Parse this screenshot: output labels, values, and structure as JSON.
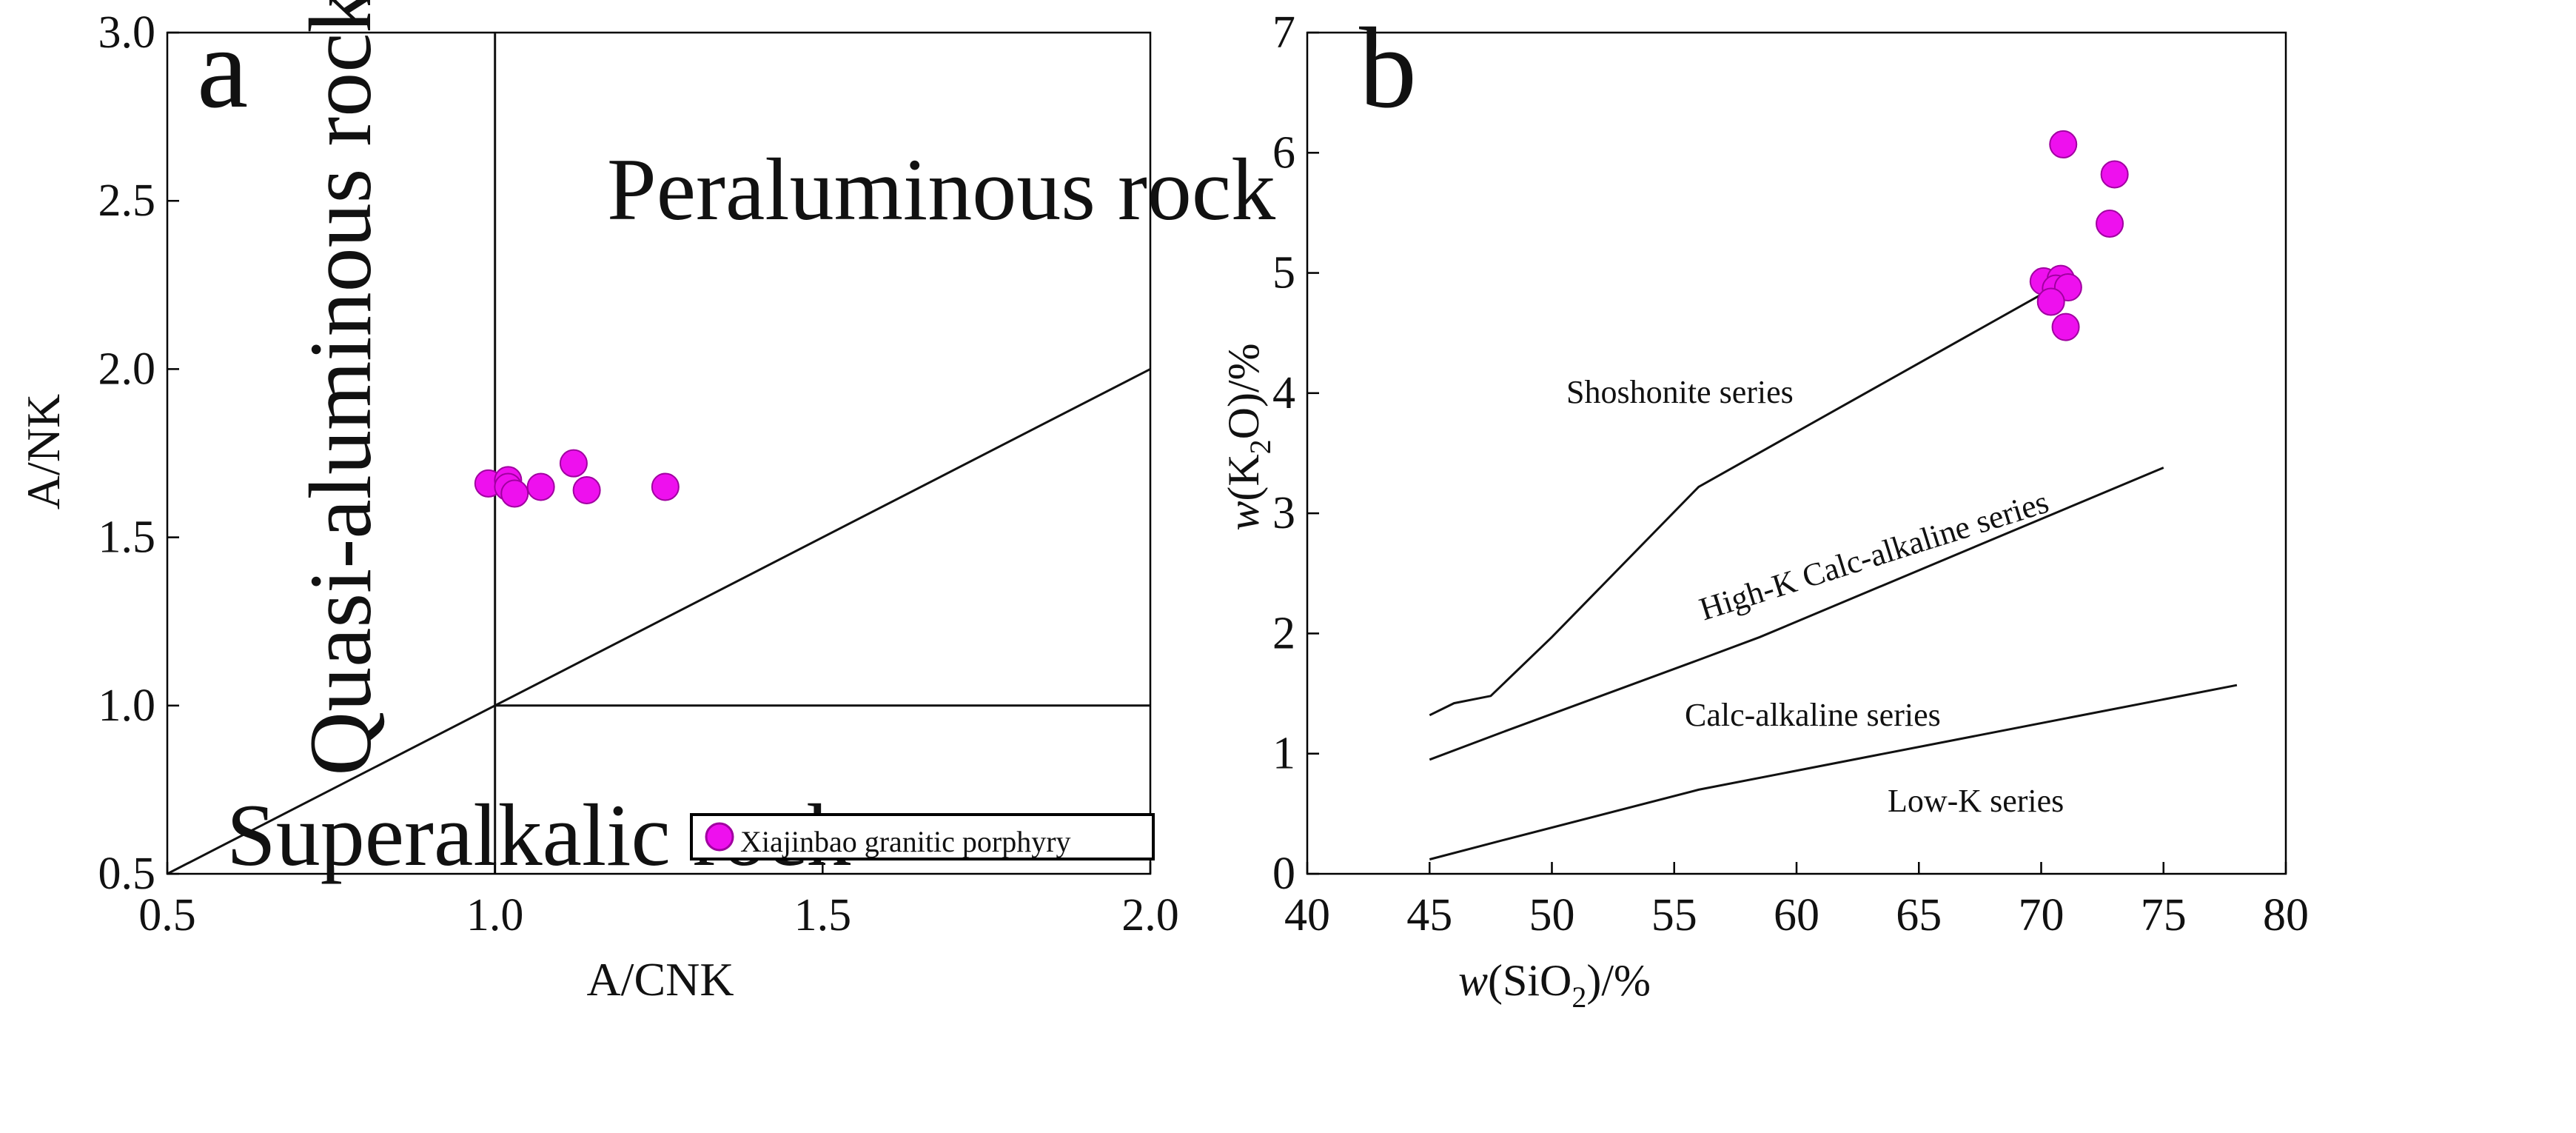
{
  "chart_data": [
    {
      "panel": "a",
      "type": "scatter",
      "title": "",
      "xlabel": "A/CNK",
      "ylabel": "A/NK",
      "xlim": [
        0.5,
        2.0
      ],
      "ylim": [
        0.5,
        3.0
      ],
      "xticks": [
        "0.5",
        "1.0",
        "1.5",
        "2.0"
      ],
      "yticks": [
        "0.5",
        "1.0",
        "1.5",
        "2.0",
        "2.5",
        "3.0"
      ],
      "grid": false,
      "legend_position": "bottom-right",
      "series": [
        {
          "name": "Xiajinbao granitic porphyry",
          "color": "#ee10ee",
          "points": [
            {
              "x": 0.99,
              "y": 1.66
            },
            {
              "x": 1.02,
              "y": 1.67
            },
            {
              "x": 1.02,
              "y": 1.65
            },
            {
              "x": 1.03,
              "y": 1.63
            },
            {
              "x": 1.07,
              "y": 1.65
            },
            {
              "x": 1.12,
              "y": 1.72
            },
            {
              "x": 1.14,
              "y": 1.64
            },
            {
              "x": 1.26,
              "y": 1.65
            }
          ]
        }
      ],
      "boundaries": [
        {
          "name": "A/CNK=1",
          "points": [
            [
              1.0,
              0.5
            ],
            [
              1.0,
              3.0
            ]
          ]
        },
        {
          "name": "A/NK=1",
          "points": [
            [
              1.0,
              1.0
            ],
            [
              2.0,
              1.0
            ]
          ]
        },
        {
          "name": "A/NK=A/CNK",
          "points": [
            [
              0.5,
              0.5
            ],
            [
              2.0,
              2.0
            ]
          ]
        }
      ],
      "region_labels": {
        "peraluminous": "Peraluminous rock",
        "quasi": "Quasi-aluminous rock",
        "superalkalic": "Superalkalic rock"
      }
    },
    {
      "panel": "b",
      "type": "scatter",
      "title": "",
      "xlabel": "w(SiO2)/%",
      "ylabel": "w(K2O)/%",
      "xlim": [
        40,
        80
      ],
      "ylim": [
        0,
        7
      ],
      "xticks": [
        "40",
        "45",
        "50",
        "55",
        "60",
        "65",
        "70",
        "75",
        "80"
      ],
      "yticks": [
        "0",
        "1",
        "2",
        "3",
        "4",
        "5",
        "6",
        "7"
      ],
      "grid": false,
      "series": [
        {
          "name": "Xiajinbao granitic porphyry",
          "color": "#ee10ee",
          "points": [
            {
              "x": 70.9,
              "y": 6.07
            },
            {
              "x": 73.0,
              "y": 5.82
            },
            {
              "x": 72.8,
              "y": 5.41
            },
            {
              "x": 70.1,
              "y": 4.93
            },
            {
              "x": 70.8,
              "y": 4.95
            },
            {
              "x": 70.6,
              "y": 4.87
            },
            {
              "x": 71.1,
              "y": 4.88
            },
            {
              "x": 70.4,
              "y": 4.76
            },
            {
              "x": 71.0,
              "y": 4.55
            }
          ]
        }
      ],
      "boundaries": [
        {
          "name": "Shoshonite / High-K",
          "points": [
            [
              45,
              1.32
            ],
            [
              46,
              1.42
            ],
            [
              47.5,
              1.48
            ],
            [
              50,
              1.97
            ],
            [
              56,
              3.22
            ],
            [
              70,
              4.82
            ]
          ]
        },
        {
          "name": "High-K / Calc-alkaline",
          "points": [
            [
              45,
              0.95
            ],
            [
              48,
              1.18
            ],
            [
              56,
              1.78
            ],
            [
              58.5,
              1.97
            ],
            [
              75,
              3.38
            ]
          ]
        },
        {
          "name": "Calc-alkaline / Low-K",
          "points": [
            [
              45,
              0.12
            ],
            [
              48,
              0.28
            ],
            [
              56,
              0.7
            ],
            [
              78,
              1.57
            ]
          ]
        }
      ],
      "region_labels": {
        "shoshonite": "Shoshonite series",
        "highk": "High-K Calc-alkaline series",
        "calc": "Calc-alkaline series",
        "lowk": "Low-K  series"
      }
    }
  ]
}
